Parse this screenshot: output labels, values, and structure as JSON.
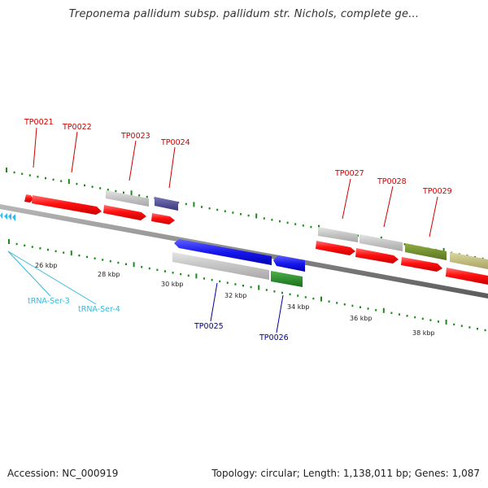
{
  "title": "Treponema pallidum subsp. pallidum str. Nichols, complete ge...",
  "footer": {
    "accession": "Accession: NC_000919",
    "summary": "Topology: circular; Length: 1,138,011 bp; Genes: 1,087"
  },
  "colors": {
    "backbone": "#8a8a8a",
    "tick": "#1c8a1c",
    "cds": "#ff1a1a",
    "cds_alt": "#c8c8c8",
    "cds_blue": "#1f1fe6",
    "cds_purple": "#4b4690",
    "cds_green": "#2a8c2a",
    "cds_olive": "#6f8c2a",
    "cds_khaki": "#bdb879",
    "trna": "#33bbee",
    "label_red": "#cc0000",
    "label_blue": "#000099",
    "label_cyan": "#33bbdd"
  },
  "ruler": {
    "labels": [
      "26 kbp",
      "28 kbp",
      "30 kbp",
      "32 kbp",
      "34 kbp",
      "36 kbp",
      "38 kbp"
    ]
  },
  "genes_top": [
    "TP0021",
    "TP0022",
    "TP0023",
    "TP0024",
    "TP0027",
    "TP0028",
    "TP0029"
  ],
  "genes_bottom": [
    "TP0025",
    "TP0026"
  ],
  "trnas": [
    "tRNA-Ser-3",
    "tRNA-Ser-4"
  ]
}
